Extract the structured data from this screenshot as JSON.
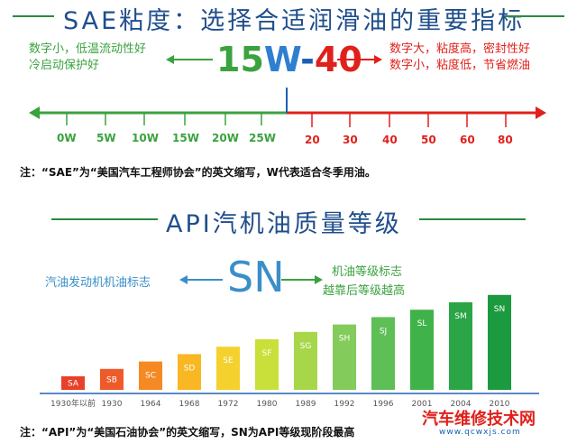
{
  "sae": {
    "title": "SAE粘度：选择合适润滑油的重要指标",
    "left_text": [
      "数字小，低温流动性好",
      "冷启动保护好"
    ],
    "right_text": [
      "数字大，粘度高，密封性好",
      "数字小，粘度低，节省燃油"
    ],
    "grade": {
      "part1": "15",
      "part2": "W",
      "part3": "-",
      "part4": "40"
    },
    "winter_ticks": [
      "0W",
      "5W",
      "10W",
      "15W",
      "20W",
      "25W"
    ],
    "summer_ticks": [
      "20",
      "30",
      "40",
      "50",
      "60",
      "80"
    ],
    "note": "注：“SAE”为“美国汽车工程师协会”的英文缩写，W代表适合冬季用油。",
    "colors": {
      "green": "#3aa23e",
      "red": "#e0201b",
      "blue": "#1a5fb4"
    }
  },
  "api": {
    "title": "API汽机油质量等级",
    "center_label": "SN",
    "left_text": "汽油发动机机油标志",
    "right_text": [
      "机油等级标志",
      "越靠后等级越高"
    ],
    "grades": [
      {
        "label": "SA",
        "year": "1930年以前",
        "color": "#e8412a"
      },
      {
        "label": "SB",
        "year": "1930",
        "color": "#ef5a2b"
      },
      {
        "label": "SC",
        "year": "1964",
        "color": "#f58a24"
      },
      {
        "label": "SD",
        "year": "1968",
        "color": "#f9b723"
      },
      {
        "label": "SE",
        "year": "1972",
        "color": "#f4d12d"
      },
      {
        "label": "SF",
        "year": "1980",
        "color": "#c9df3a"
      },
      {
        "label": "SG",
        "year": "1989",
        "color": "#a7d64a"
      },
      {
        "label": "SH",
        "year": "1992",
        "color": "#83cb5a"
      },
      {
        "label": "SJ",
        "year": "1996",
        "color": "#5ebf56"
      },
      {
        "label": "SL",
        "year": "2001",
        "color": "#3fb34a"
      },
      {
        "label": "SM",
        "year": "2004",
        "color": "#2ba545"
      },
      {
        "label": "SN",
        "year": "2010",
        "color": "#1c9a3f"
      }
    ],
    "note": "注：“API”为“美国石油协会”的英文缩写，SN为API等级现阶段最高"
  },
  "watermark": {
    "text": "汽车维修技术网",
    "sub": "www.qcwxjs.com"
  }
}
